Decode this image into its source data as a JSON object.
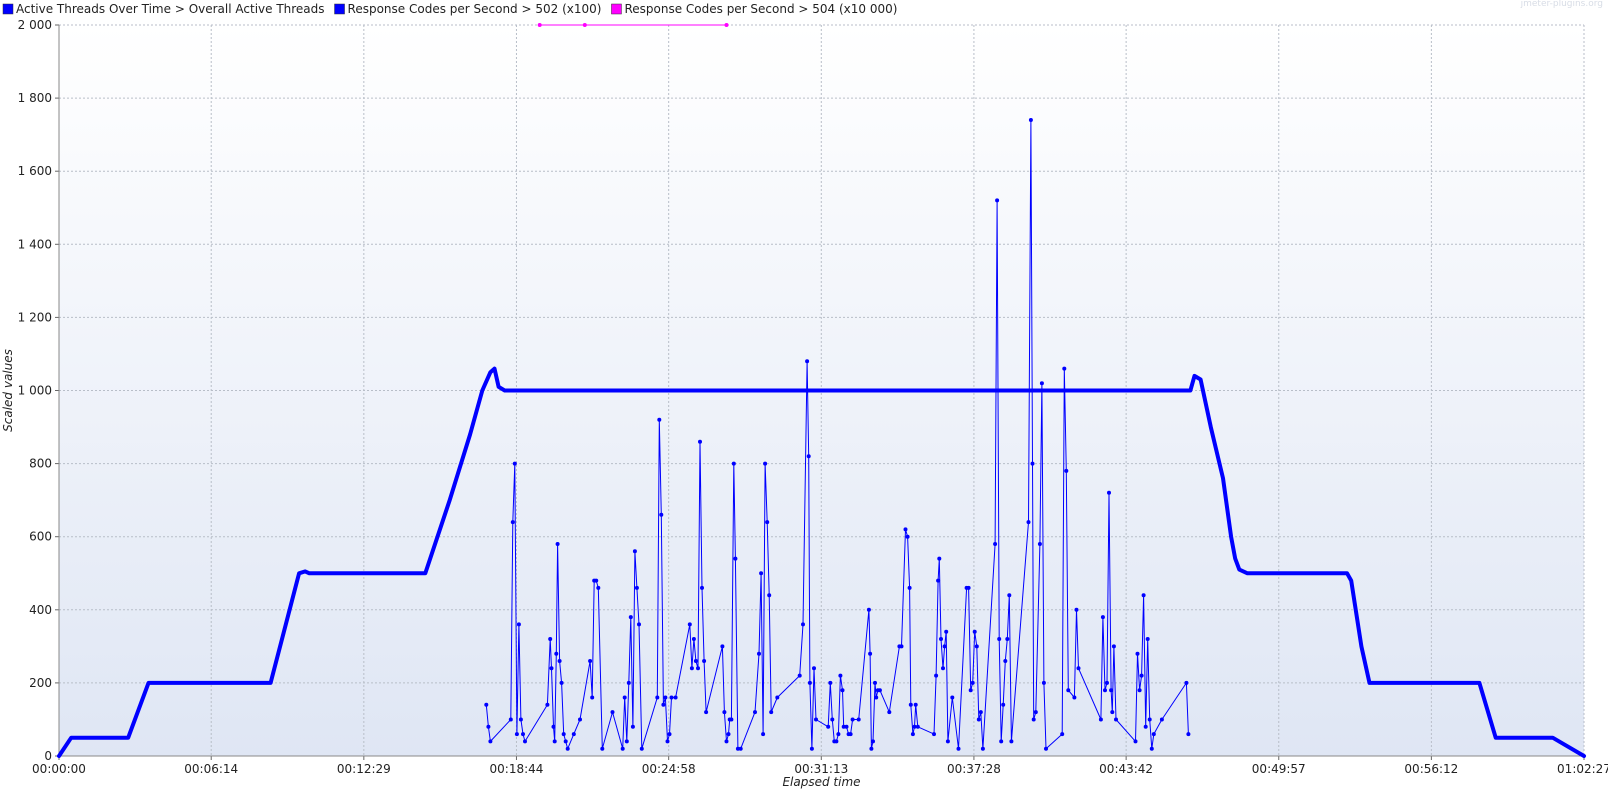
{
  "watermark": "jmeter-plugins.org",
  "chart_data": {
    "type": "line",
    "xlabel": "Elapsed time",
    "ylabel": "Scaled values",
    "xlim": [
      0,
      3747
    ],
    "ylim": [
      0,
      2000
    ],
    "grid": true,
    "legend": "top-left",
    "y_ticks": [
      0,
      200,
      400,
      600,
      800,
      1000,
      1200,
      1400,
      1600,
      1800,
      2000
    ],
    "y_tick_labels": [
      "0",
      "200",
      "400",
      "600",
      "800",
      "1 000",
      "1 200",
      "1 400",
      "1 600",
      "1 800",
      "2 000"
    ],
    "x_ticks": [
      0,
      374,
      749,
      1124,
      1498,
      1873,
      2248,
      2622,
      2997,
      3372,
      3747
    ],
    "x_tick_labels": [
      "00:00:00",
      "00:06:14",
      "00:12:29",
      "00:18:44",
      "00:24:58",
      "00:31:13",
      "00:37:28",
      "00:43:42",
      "00:49:57",
      "00:56:12",
      "01:02:27"
    ],
    "series": [
      {
        "name": "Active Threads Over Time > Overall Active Threads",
        "color": "#0000ff",
        "style": "thick",
        "points": [
          [
            0,
            0
          ],
          [
            30,
            50
          ],
          [
            170,
            50
          ],
          [
            220,
            200
          ],
          [
            520,
            200
          ],
          [
            590,
            500
          ],
          [
            605,
            505
          ],
          [
            615,
            500
          ],
          [
            900,
            500
          ],
          [
            960,
            700
          ],
          [
            1010,
            880
          ],
          [
            1040,
            1000
          ],
          [
            1060,
            1050
          ],
          [
            1070,
            1060
          ],
          [
            1080,
            1010
          ],
          [
            1095,
            1000
          ],
          [
            2780,
            1000
          ],
          [
            2790,
            1040
          ],
          [
            2805,
            1030
          ],
          [
            2830,
            900
          ],
          [
            2860,
            760
          ],
          [
            2880,
            600
          ],
          [
            2890,
            540
          ],
          [
            2900,
            510
          ],
          [
            2920,
            500
          ],
          [
            3150,
            500
          ],
          [
            3165,
            500
          ],
          [
            3175,
            480
          ],
          [
            3200,
            300
          ],
          [
            3220,
            200
          ],
          [
            3490,
            200
          ],
          [
            3530,
            50
          ],
          [
            3670,
            50
          ],
          [
            3747,
            0
          ]
        ]
      },
      {
        "name": "Response Codes per Second > 502 (x100)",
        "color": "#0000ff",
        "style": "thin-markers",
        "points": [
          [
            1050,
            140
          ],
          [
            1055,
            80
          ],
          [
            1060,
            40
          ],
          [
            1110,
            100
          ],
          [
            1115,
            640
          ],
          [
            1120,
            800
          ],
          [
            1125,
            60
          ],
          [
            1130,
            360
          ],
          [
            1135,
            100
          ],
          [
            1140,
            60
          ],
          [
            1145,
            40
          ],
          [
            1200,
            140
          ],
          [
            1207,
            320
          ],
          [
            1210,
            240
          ],
          [
            1215,
            80
          ],
          [
            1218,
            40
          ],
          [
            1222,
            280
          ],
          [
            1225,
            580
          ],
          [
            1230,
            260
          ],
          [
            1235,
            200
          ],
          [
            1240,
            60
          ],
          [
            1245,
            40
          ],
          [
            1250,
            20
          ],
          [
            1265,
            60
          ],
          [
            1280,
            100
          ],
          [
            1305,
            260
          ],
          [
            1310,
            160
          ],
          [
            1315,
            480
          ],
          [
            1320,
            480
          ],
          [
            1325,
            460
          ],
          [
            1335,
            20
          ],
          [
            1360,
            120
          ],
          [
            1385,
            20
          ],
          [
            1390,
            160
          ],
          [
            1395,
            40
          ],
          [
            1400,
            200
          ],
          [
            1405,
            380
          ],
          [
            1410,
            80
          ],
          [
            1415,
            560
          ],
          [
            1420,
            460
          ],
          [
            1425,
            360
          ],
          [
            1432,
            20
          ],
          [
            1470,
            160
          ],
          [
            1475,
            920
          ],
          [
            1480,
            660
          ],
          [
            1485,
            140
          ],
          [
            1490,
            160
          ],
          [
            1495,
            40
          ],
          [
            1500,
            60
          ],
          [
            1505,
            160
          ],
          [
            1515,
            160
          ],
          [
            1550,
            360
          ],
          [
            1555,
            240
          ],
          [
            1560,
            320
          ],
          [
            1565,
            260
          ],
          [
            1570,
            240
          ],
          [
            1575,
            860
          ],
          [
            1580,
            460
          ],
          [
            1585,
            260
          ],
          [
            1590,
            120
          ],
          [
            1630,
            300
          ],
          [
            1635,
            120
          ],
          [
            1640,
            40
          ],
          [
            1645,
            60
          ],
          [
            1648,
            100
          ],
          [
            1652,
            100
          ],
          [
            1658,
            800
          ],
          [
            1662,
            540
          ],
          [
            1668,
            20
          ],
          [
            1675,
            20
          ],
          [
            1710,
            120
          ],
          [
            1720,
            280
          ],
          [
            1725,
            500
          ],
          [
            1730,
            60
          ],
          [
            1735,
            800
          ],
          [
            1740,
            640
          ],
          [
            1745,
            440
          ],
          [
            1750,
            120
          ],
          [
            1765,
            160
          ],
          [
            1820,
            220
          ],
          [
            1828,
            360
          ],
          [
            1838,
            1080
          ],
          [
            1842,
            820
          ],
          [
            1845,
            200
          ],
          [
            1850,
            20
          ],
          [
            1855,
            240
          ],
          [
            1860,
            100
          ],
          [
            1890,
            80
          ],
          [
            1895,
            200
          ],
          [
            1900,
            100
          ],
          [
            1905,
            40
          ],
          [
            1910,
            40
          ],
          [
            1915,
            60
          ],
          [
            1920,
            220
          ],
          [
            1925,
            180
          ],
          [
            1928,
            80
          ],
          [
            1935,
            80
          ],
          [
            1940,
            60
          ],
          [
            1945,
            60
          ],
          [
            1950,
            100
          ],
          [
            1965,
            100
          ],
          [
            1990,
            400
          ],
          [
            1993,
            280
          ],
          [
            1996,
            20
          ],
          [
            2000,
            40
          ],
          [
            2005,
            200
          ],
          [
            2008,
            160
          ],
          [
            2012,
            180
          ],
          [
            2017,
            180
          ],
          [
            2040,
            120
          ],
          [
            2065,
            300
          ],
          [
            2070,
            300
          ],
          [
            2080,
            620
          ],
          [
            2085,
            600
          ],
          [
            2090,
            460
          ],
          [
            2093,
            140
          ],
          [
            2098,
            60
          ],
          [
            2102,
            80
          ],
          [
            2105,
            140
          ],
          [
            2110,
            80
          ],
          [
            2150,
            60
          ],
          [
            2155,
            220
          ],
          [
            2160,
            480
          ],
          [
            2163,
            540
          ],
          [
            2167,
            320
          ],
          [
            2172,
            240
          ],
          [
            2176,
            300
          ],
          [
            2180,
            340
          ],
          [
            2184,
            40
          ],
          [
            2195,
            160
          ],
          [
            2210,
            20
          ],
          [
            2230,
            460
          ],
          [
            2235,
            460
          ],
          [
            2240,
            180
          ],
          [
            2245,
            200
          ],
          [
            2250,
            340
          ],
          [
            2255,
            300
          ],
          [
            2260,
            100
          ],
          [
            2265,
            120
          ],
          [
            2270,
            20
          ],
          [
            2300,
            580
          ],
          [
            2305,
            1520
          ],
          [
            2310,
            320
          ],
          [
            2315,
            40
          ],
          [
            2320,
            140
          ],
          [
            2325,
            260
          ],
          [
            2330,
            320
          ],
          [
            2335,
            440
          ],
          [
            2340,
            40
          ],
          [
            2382,
            640
          ],
          [
            2388,
            1740
          ],
          [
            2392,
            800
          ],
          [
            2395,
            100
          ],
          [
            2400,
            120
          ],
          [
            2410,
            580
          ],
          [
            2415,
            1020
          ],
          [
            2420,
            200
          ],
          [
            2425,
            20
          ],
          [
            2465,
            60
          ],
          [
            2470,
            1060
          ],
          [
            2475,
            780
          ],
          [
            2480,
            180
          ],
          [
            2495,
            160
          ],
          [
            2500,
            400
          ],
          [
            2505,
            240
          ],
          [
            2560,
            100
          ],
          [
            2565,
            380
          ],
          [
            2570,
            180
          ],
          [
            2575,
            200
          ],
          [
            2580,
            720
          ],
          [
            2585,
            180
          ],
          [
            2588,
            120
          ],
          [
            2592,
            300
          ],
          [
            2597,
            100
          ],
          [
            2645,
            40
          ],
          [
            2650,
            280
          ],
          [
            2655,
            180
          ],
          [
            2660,
            220
          ],
          [
            2665,
            440
          ],
          [
            2670,
            80
          ],
          [
            2675,
            320
          ],
          [
            2680,
            100
          ],
          [
            2685,
            20
          ],
          [
            2690,
            60
          ],
          [
            2710,
            100
          ],
          [
            2770,
            200
          ],
          [
            2775,
            60
          ]
        ]
      },
      {
        "name": "Response Codes per Second > 504 (x10 000)",
        "color": "#ff00ff",
        "style": "thin-markers",
        "points": [
          [
            1181,
            2000
          ],
          [
            1292,
            2000
          ],
          [
            1640,
            2000
          ]
        ]
      }
    ]
  }
}
